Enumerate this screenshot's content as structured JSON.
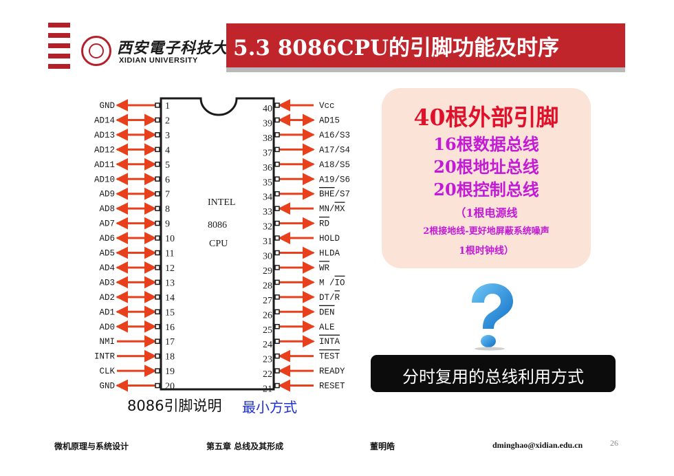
{
  "header": {
    "university_cn": "西安電子科技大學",
    "university_en": "XIDIAN UNIVERSITY",
    "title": "5.3  8086CPU的引脚功能及时序",
    "brand_color": "#c0252c"
  },
  "chip": {
    "name_lines": [
      "INTEL",
      "8086",
      "CPU"
    ],
    "left_pins": [
      {
        "num": "1",
        "label": "GND",
        "dir": "out"
      },
      {
        "num": "2",
        "label": "AD14",
        "dir": "bi"
      },
      {
        "num": "3",
        "label": "AD13",
        "dir": "bi"
      },
      {
        "num": "4",
        "label": "AD12",
        "dir": "bi"
      },
      {
        "num": "5",
        "label": "AD11",
        "dir": "bi"
      },
      {
        "num": "6",
        "label": "AD10",
        "dir": "bi"
      },
      {
        "num": "7",
        "label": "AD9",
        "dir": "bi"
      },
      {
        "num": "8",
        "label": "AD8",
        "dir": "bi"
      },
      {
        "num": "9",
        "label": "AD7",
        "dir": "bi"
      },
      {
        "num": "10",
        "label": "AD6",
        "dir": "bi"
      },
      {
        "num": "11",
        "label": "AD5",
        "dir": "bi"
      },
      {
        "num": "12",
        "label": "AD4",
        "dir": "bi"
      },
      {
        "num": "13",
        "label": "AD3",
        "dir": "bi"
      },
      {
        "num": "14",
        "label": "AD2",
        "dir": "bi"
      },
      {
        "num": "15",
        "label": "AD1",
        "dir": "bi"
      },
      {
        "num": "16",
        "label": "AD0",
        "dir": "bi"
      },
      {
        "num": "17",
        "label": "NMI",
        "dir": "in"
      },
      {
        "num": "18",
        "label": "INTR",
        "dir": "in"
      },
      {
        "num": "19",
        "label": "CLK",
        "dir": "in"
      },
      {
        "num": "20",
        "label": "GND",
        "dir": "out"
      }
    ],
    "right_pins": [
      {
        "num": "40",
        "label": "Vcc",
        "dir": "in",
        "over": ""
      },
      {
        "num": "39",
        "label": "AD15",
        "dir": "bi",
        "over": ""
      },
      {
        "num": "38",
        "label": "A16/S3",
        "dir": "out",
        "over": ""
      },
      {
        "num": "37",
        "label": "A17/S4",
        "dir": "out",
        "over": ""
      },
      {
        "num": "36",
        "label": "A18/S5",
        "dir": "out",
        "over": ""
      },
      {
        "num": "35",
        "label": "A19/S6",
        "dir": "out",
        "over": ""
      },
      {
        "num": "34",
        "label": "BHE/S7",
        "dir": "out",
        "over": "BHE"
      },
      {
        "num": "33",
        "label": "MN/MX",
        "dir": "in",
        "over": "MX"
      },
      {
        "num": "32",
        "label": "RD",
        "dir": "out",
        "over": "RD"
      },
      {
        "num": "31",
        "label": "HOLD",
        "dir": "in",
        "over": ""
      },
      {
        "num": "30",
        "label": "HLDA",
        "dir": "out",
        "over": ""
      },
      {
        "num": "29",
        "label": "WR",
        "dir": "out",
        "over": "WR"
      },
      {
        "num": "28",
        "label": "M /IO",
        "dir": "out",
        "over": "IO"
      },
      {
        "num": "27",
        "label": "DT/R",
        "dir": "out",
        "over": "R"
      },
      {
        "num": "26",
        "label": "DEN",
        "dir": "out",
        "over": "DEN"
      },
      {
        "num": "25",
        "label": "ALE",
        "dir": "out",
        "over": ""
      },
      {
        "num": "24",
        "label": "INTA",
        "dir": "out",
        "over": "INTA"
      },
      {
        "num": "23",
        "label": "TEST",
        "dir": "in",
        "over": "TEST"
      },
      {
        "num": "22",
        "label": "READY",
        "dir": "in",
        "over": ""
      },
      {
        "num": "21",
        "label": "RESET",
        "dir": "in",
        "over": ""
      }
    ],
    "arrow_color": "#e8401c"
  },
  "caption": {
    "main": "8086引脚说明",
    "mode": "最小方式"
  },
  "info": {
    "heading": "40根外部引脚",
    "line1": "16根数据总线",
    "line2": "20根地址总线",
    "line3": "20根控制总线",
    "line4": "（1根电源线",
    "line5": "2根接地线-更好地屏蔽系统噪声",
    "line6": "1根时钟线）"
  },
  "question_icon": "question-mark-icon",
  "banner": {
    "text": "分时复用的总线利用方式"
  },
  "footer": {
    "course": "微机原理与系统设计",
    "chapter": "第五章   总线及其形成",
    "author": "董明皓",
    "email": "dminghao@xidian.edu.cn",
    "page": "26"
  }
}
